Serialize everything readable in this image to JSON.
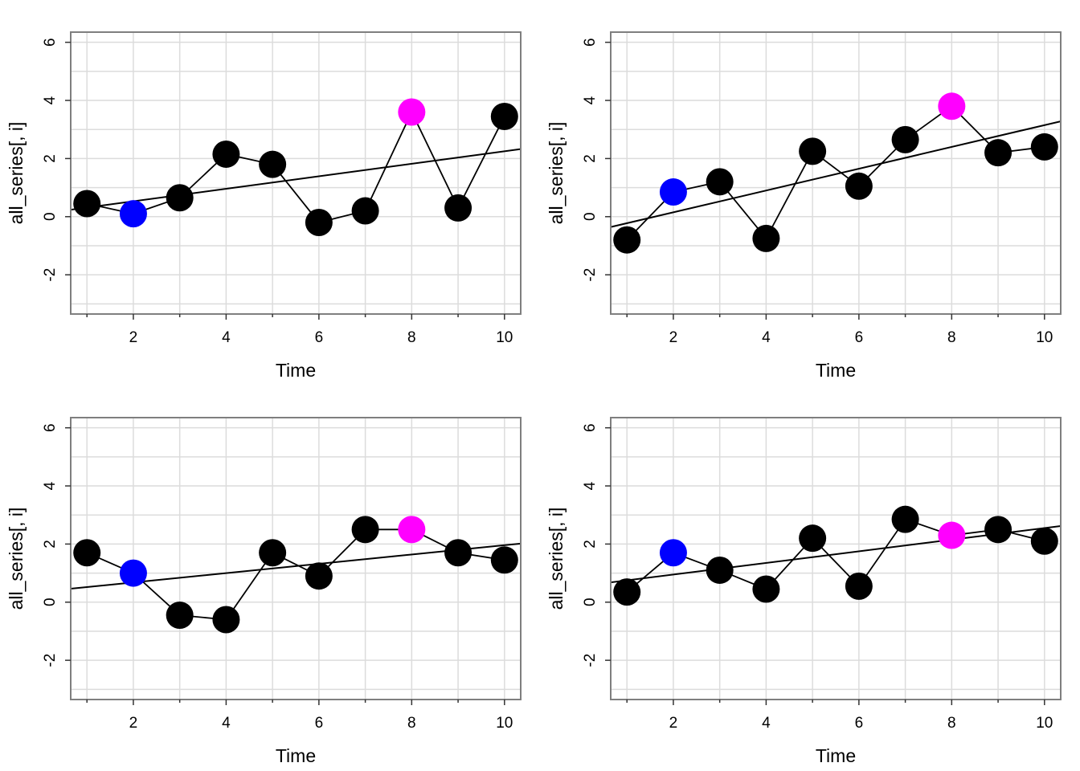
{
  "colors": {
    "grid": "#dcdcdc",
    "frame": "#7f7f7f",
    "point_default": "#000000",
    "point_highlight_1": "#0000ff",
    "point_highlight_2": "#ff00ff",
    "line": "#000000"
  },
  "chart_data": [
    {
      "type": "scatter",
      "title": "",
      "xlabel": "Time",
      "ylabel": "all_series[, i]",
      "xlim": [
        0.65,
        10.35
      ],
      "ylim": [
        -3.35,
        6.35
      ],
      "x_ticks": [
        2,
        4,
        6,
        8,
        10
      ],
      "y_ticks": [
        -2,
        0,
        2,
        4,
        6
      ],
      "grid": true,
      "x": [
        1,
        2,
        3,
        4,
        5,
        6,
        7,
        8,
        9,
        10
      ],
      "y": [
        0.45,
        0.1,
        0.65,
        2.15,
        1.8,
        -0.2,
        0.2,
        3.6,
        0.3,
        3.45
      ],
      "point_colors": [
        "black",
        "blue",
        "black",
        "black",
        "black",
        "black",
        "black",
        "magenta",
        "black",
        "black"
      ],
      "connect_points": true,
      "trend_line": {
        "intercept": 0.1,
        "slope": 0.215
      }
    },
    {
      "type": "scatter",
      "title": "",
      "xlabel": "Time",
      "ylabel": "all_series[, i]",
      "xlim": [
        0.65,
        10.35
      ],
      "ylim": [
        -3.35,
        6.35
      ],
      "x_ticks": [
        2,
        4,
        6,
        8,
        10
      ],
      "y_ticks": [
        -2,
        0,
        2,
        4,
        6
      ],
      "grid": true,
      "x": [
        1,
        2,
        3,
        4,
        5,
        6,
        7,
        8,
        9,
        10
      ],
      "y": [
        -0.8,
        0.85,
        1.2,
        -0.75,
        2.25,
        1.05,
        2.65,
        3.8,
        2.2,
        2.4
      ],
      "point_colors": [
        "black",
        "blue",
        "black",
        "black",
        "black",
        "black",
        "black",
        "magenta",
        "black",
        "black"
      ],
      "connect_points": true,
      "trend_line": {
        "intercept": -0.6,
        "slope": 0.375
      }
    },
    {
      "type": "scatter",
      "title": "",
      "xlabel": "Time",
      "ylabel": "all_series[, i]",
      "xlim": [
        0.65,
        10.35
      ],
      "ylim": [
        -3.35,
        6.35
      ],
      "x_ticks": [
        2,
        4,
        6,
        8,
        10
      ],
      "y_ticks": [
        -2,
        0,
        2,
        4,
        6
      ],
      "grid": true,
      "x": [
        1,
        2,
        3,
        4,
        5,
        6,
        7,
        8,
        9,
        10
      ],
      "y": [
        1.7,
        1.0,
        -0.45,
        -0.6,
        1.7,
        0.9,
        2.5,
        2.5,
        1.7,
        1.45
      ],
      "point_colors": [
        "black",
        "blue",
        "black",
        "black",
        "black",
        "black",
        "black",
        "magenta",
        "black",
        "black"
      ],
      "connect_points": true,
      "trend_line": {
        "intercept": 0.36,
        "slope": 0.16
      }
    },
    {
      "type": "scatter",
      "title": "",
      "xlabel": "Time",
      "ylabel": "all_series[, i]",
      "xlim": [
        0.65,
        10.35
      ],
      "ylim": [
        -3.35,
        6.35
      ],
      "x_ticks": [
        2,
        4,
        6,
        8,
        10
      ],
      "y_ticks": [
        -2,
        0,
        2,
        4,
        6
      ],
      "grid": true,
      "x": [
        1,
        2,
        3,
        4,
        5,
        6,
        7,
        8,
        9,
        10
      ],
      "y": [
        0.35,
        1.7,
        1.1,
        0.45,
        2.2,
        0.55,
        2.85,
        2.3,
        2.5,
        2.1
      ],
      "point_colors": [
        "black",
        "blue",
        "black",
        "black",
        "black",
        "black",
        "black",
        "magenta",
        "black",
        "black"
      ],
      "connect_points": true,
      "trend_line": {
        "intercept": 0.55,
        "slope": 0.2
      }
    }
  ]
}
